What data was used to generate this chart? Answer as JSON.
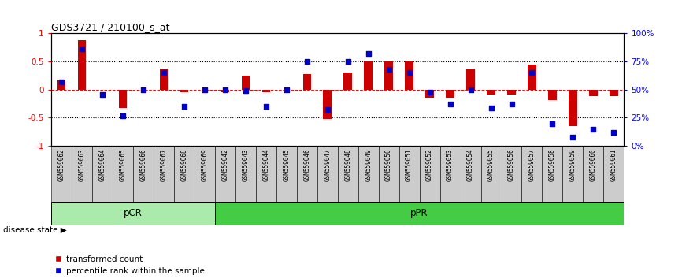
{
  "title": "GDS3721 / 210100_s_at",
  "samples": [
    "GSM559062",
    "GSM559063",
    "GSM559064",
    "GSM559065",
    "GSM559066",
    "GSM559067",
    "GSM559068",
    "GSM559069",
    "GSM559042",
    "GSM559043",
    "GSM559044",
    "GSM559045",
    "GSM559046",
    "GSM559047",
    "GSM559048",
    "GSM559049",
    "GSM559050",
    "GSM559051",
    "GSM559052",
    "GSM559053",
    "GSM559054",
    "GSM559055",
    "GSM559056",
    "GSM559057",
    "GSM559058",
    "GSM559059",
    "GSM559060",
    "GSM559061"
  ],
  "transformed_count": [
    0.18,
    0.88,
    0.0,
    -0.32,
    0.0,
    0.38,
    -0.05,
    0.0,
    -0.05,
    0.25,
    -0.05,
    0.0,
    0.28,
    -0.52,
    0.3,
    0.5,
    0.5,
    0.52,
    -0.15,
    -0.15,
    0.38,
    -0.08,
    -0.08,
    0.45,
    -0.18,
    -0.65,
    -0.12,
    -0.12
  ],
  "percentile_rank_pct": [
    57,
    86,
    46,
    27,
    50,
    65,
    35,
    50,
    50,
    49,
    35,
    50,
    75,
    32,
    75,
    82,
    68,
    65,
    48,
    37,
    50,
    34,
    37,
    65,
    20,
    8,
    15,
    12
  ],
  "n_pcr": 8,
  "n_total": 28,
  "pcr_color": "#aaeaaa",
  "ppr_color": "#44cc44",
  "bar_color": "#CC0000",
  "dot_color": "#0000CC",
  "sample_box_color": "#cccccc",
  "bg_color": "#ffffff",
  "left_ylim": [
    -1.0,
    1.0
  ],
  "right_ylim": [
    0,
    100
  ],
  "dotline_vals": [
    0.5,
    -0.5
  ],
  "left_yticks": [
    -1,
    -0.5,
    0,
    0.5,
    1
  ],
  "left_yticklabels": [
    "-1",
    "-0.5",
    "0",
    "0.5",
    "1"
  ],
  "right_yticks": [
    0,
    25,
    50,
    75,
    100
  ],
  "right_yticklabels": [
    "0%",
    "25%",
    "50%",
    "75%",
    "100%"
  ]
}
